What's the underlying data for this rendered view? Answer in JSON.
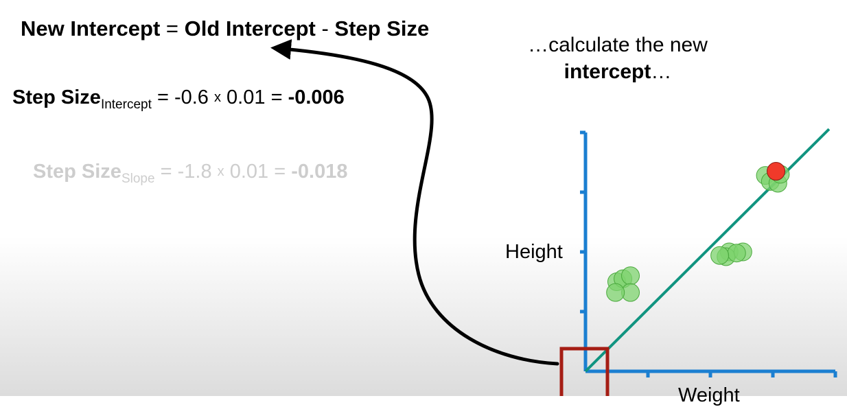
{
  "equation": {
    "new_intercept": "New Intercept",
    "equals": "=",
    "old_intercept": "Old Intercept",
    "minus": "-",
    "step_size": "Step Size"
  },
  "step_intercept": {
    "label": "Step Size",
    "subscript": "Intercept",
    "equals": "=",
    "derivative": "-0.6",
    "times": "x",
    "learning_rate": "0.01",
    "equals2": "=",
    "result": "-0.006"
  },
  "step_slope": {
    "label": "Step Size",
    "subscript": "Slope",
    "equals": "=",
    "derivative": "-1.8",
    "times": "x",
    "learning_rate": "0.01",
    "equals2": "=",
    "result": "-0.018"
  },
  "caption": {
    "line1": "…calculate the new",
    "bold": "intercept",
    "ellipsis": "…"
  },
  "chart_data": {
    "type": "scatter",
    "xlabel": "Weight",
    "ylabel": "Height",
    "xlim": [
      0,
      4
    ],
    "ylim": [
      0,
      4
    ],
    "grid": false,
    "points": [
      {
        "x": 0.5,
        "y": 1.5
      },
      {
        "x": 0.6,
        "y": 1.55
      },
      {
        "x": 0.72,
        "y": 1.6
      },
      {
        "x": 0.72,
        "y": 1.32
      },
      {
        "x": 0.48,
        "y": 1.32
      },
      {
        "x": 2.3,
        "y": 2.0
      },
      {
        "x": 2.25,
        "y": 1.92
      },
      {
        "x": 2.52,
        "y": 2.0
      },
      {
        "x": 2.42,
        "y": 1.98
      },
      {
        "x": 2.15,
        "y": 1.94
      },
      {
        "x": 2.88,
        "y": 3.28
      },
      {
        "x": 2.96,
        "y": 3.18
      },
      {
        "x": 3.08,
        "y": 3.15
      },
      {
        "x": 3.12,
        "y": 3.3
      },
      {
        "x": 3.05,
        "y": 3.35,
        "highlight": true
      }
    ],
    "line": {
      "intercept": 0,
      "slope": 1.04
    },
    "colors": {
      "axis": "#1b7fd1",
      "fit_line": "#119480",
      "point_fill": "#7ed36d",
      "point_stroke": "#4aa83d",
      "highlight_fill": "#f03a2a",
      "intercept_box": "#a51d14",
      "arrow": "#000000"
    }
  }
}
